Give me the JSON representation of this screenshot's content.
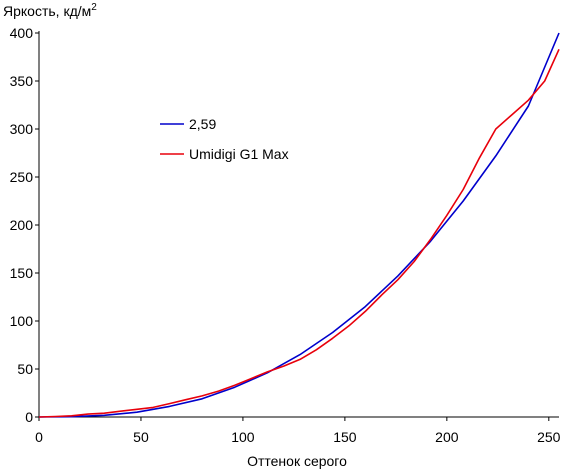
{
  "chart_data": {
    "type": "line",
    "ylabel": "Яркость, кд/м",
    "ylabel_sup": "2",
    "xlabel": "Оттенок серого",
    "xlim": [
      0,
      255
    ],
    "ylim": [
      0,
      400
    ],
    "xticks": [
      0,
      50,
      100,
      150,
      200,
      250
    ],
    "yticks": [
      0,
      50,
      100,
      150,
      200,
      250,
      300,
      350,
      400
    ],
    "grid": false,
    "legend_position": "upper-left-inside",
    "series": [
      {
        "name": "2,59",
        "color": "#0000cc",
        "x": [
          0,
          16,
          32,
          48,
          64,
          80,
          96,
          112,
          128,
          144,
          160,
          176,
          192,
          208,
          224,
          240,
          255
        ],
        "y": [
          0,
          0.3,
          1.8,
          5,
          11,
          19,
          31,
          46,
          65,
          88,
          115,
          147,
          183,
          225,
          272,
          324,
          400
        ]
      },
      {
        "name": "Umidigi G1 Max",
        "color": "#e8000b",
        "x": [
          0,
          8,
          16,
          24,
          32,
          40,
          48,
          56,
          64,
          72,
          80,
          88,
          96,
          104,
          112,
          120,
          128,
          136,
          144,
          152,
          160,
          168,
          176,
          184,
          192,
          200,
          208,
          216,
          224,
          232,
          240,
          248,
          255
        ],
        "y": [
          0,
          0.5,
          1.2,
          3,
          4,
          6,
          8,
          10,
          14,
          18,
          22,
          27,
          33,
          40,
          47,
          53,
          60,
          70,
          82,
          95,
          110,
          127,
          143,
          162,
          185,
          210,
          237,
          270,
          300,
          315,
          330,
          350,
          383
        ]
      }
    ]
  }
}
